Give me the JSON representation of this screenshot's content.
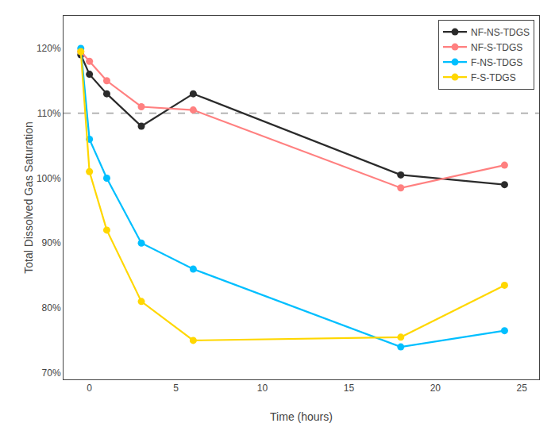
{
  "chart_data": {
    "type": "line",
    "x_label": "Time (hours)",
    "y_label": "Total Dissolved Gas Saturation",
    "series": [
      {
        "name": "NF-NS-TDGS",
        "color": "#2b2b2b",
        "marker": "circle",
        "x": [
          -0.5,
          0,
          1,
          3,
          6,
          18,
          24
        ],
        "values": [
          119,
          116,
          113,
          108,
          113,
          100.5,
          99
        ]
      },
      {
        "name": "NF-S-TDGS",
        "color": "#FF8080",
        "marker": "circle",
        "x": [
          -0.5,
          0,
          1,
          3,
          6,
          18,
          24
        ],
        "values": [
          119.5,
          118,
          115,
          111,
          110.5,
          98.5,
          102
        ]
      },
      {
        "name": "F-NS-TDGS",
        "color": "#00BFFF",
        "marker": "circle",
        "x": [
          -0.5,
          0,
          1,
          3,
          6,
          18,
          24
        ],
        "values": [
          120,
          106,
          100,
          90,
          86,
          74,
          76.5
        ]
      },
      {
        "name": "F-S-TDGS",
        "color": "#FFD700",
        "marker": "circle",
        "x": [
          -0.5,
          0,
          1,
          3,
          6,
          18,
          24
        ],
        "values": [
          119.5,
          101,
          92,
          81,
          75,
          75.5,
          83.5
        ]
      }
    ],
    "reference_line": {
      "y": 110,
      "color": "#aaaaaa",
      "line_style": "dashed"
    },
    "xlim": [
      -1.5,
      26
    ],
    "ylim": [
      69,
      125
    ],
    "xticks": [
      0,
      5,
      10,
      15,
      20,
      25
    ],
    "yticks": [
      {
        "value": 70,
        "label": "70%"
      },
      {
        "value": 80,
        "label": "80%"
      },
      {
        "value": 90,
        "label": "90%"
      },
      {
        "value": 100,
        "label": "100%"
      },
      {
        "value": 110,
        "label": "110%"
      },
      {
        "value": 120,
        "label": "120%"
      }
    ],
    "legend": "upper right",
    "grid": false
  }
}
